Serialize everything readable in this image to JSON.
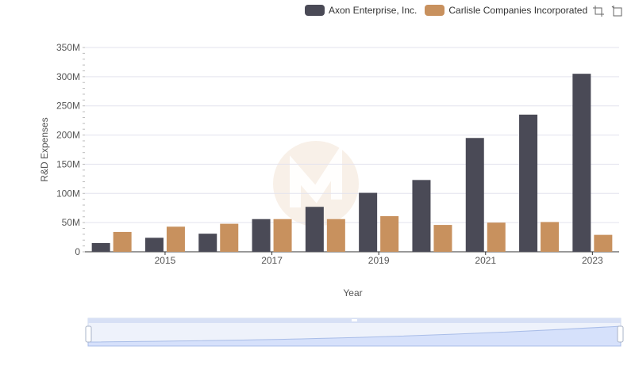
{
  "legend": {
    "items": [
      {
        "label": "Axon Enterprise, Inc.",
        "color": "#4a4a56"
      },
      {
        "label": "Carlisle Companies Incorporated",
        "color": "#c8915e"
      }
    ]
  },
  "toolbox": {
    "icons": [
      "zoom-icon",
      "zoom-reset-icon"
    ]
  },
  "chart_data": {
    "type": "bar",
    "x": [
      2014,
      2015,
      2016,
      2017,
      2018,
      2019,
      2020,
      2021,
      2022,
      2023
    ],
    "xtick_labels": [
      "2015",
      "2017",
      "2019",
      "2021",
      "2023"
    ],
    "series": [
      {
        "name": "Axon Enterprise, Inc.",
        "color": "#4a4a56",
        "values": [
          15000000,
          24000000,
          31000000,
          56000000,
          77000000,
          101000000,
          123000000,
          195000000,
          235000000,
          305000000
        ]
      },
      {
        "name": "Carlisle Companies Incorporated",
        "color": "#c8915e",
        "values": [
          34000000,
          43000000,
          48000000,
          56000000,
          56000000,
          61000000,
          46000000,
          50000000,
          51000000,
          29000000
        ]
      }
    ],
    "xlabel": "Year",
    "ylabel": "R&D Expenses",
    "ylim": [
      0,
      350000000
    ],
    "yticks": [
      "0",
      "50M",
      "100M",
      "150M",
      "200M",
      "250M",
      "300M",
      "350M"
    ],
    "grid": true,
    "legend_position": "top-right"
  }
}
